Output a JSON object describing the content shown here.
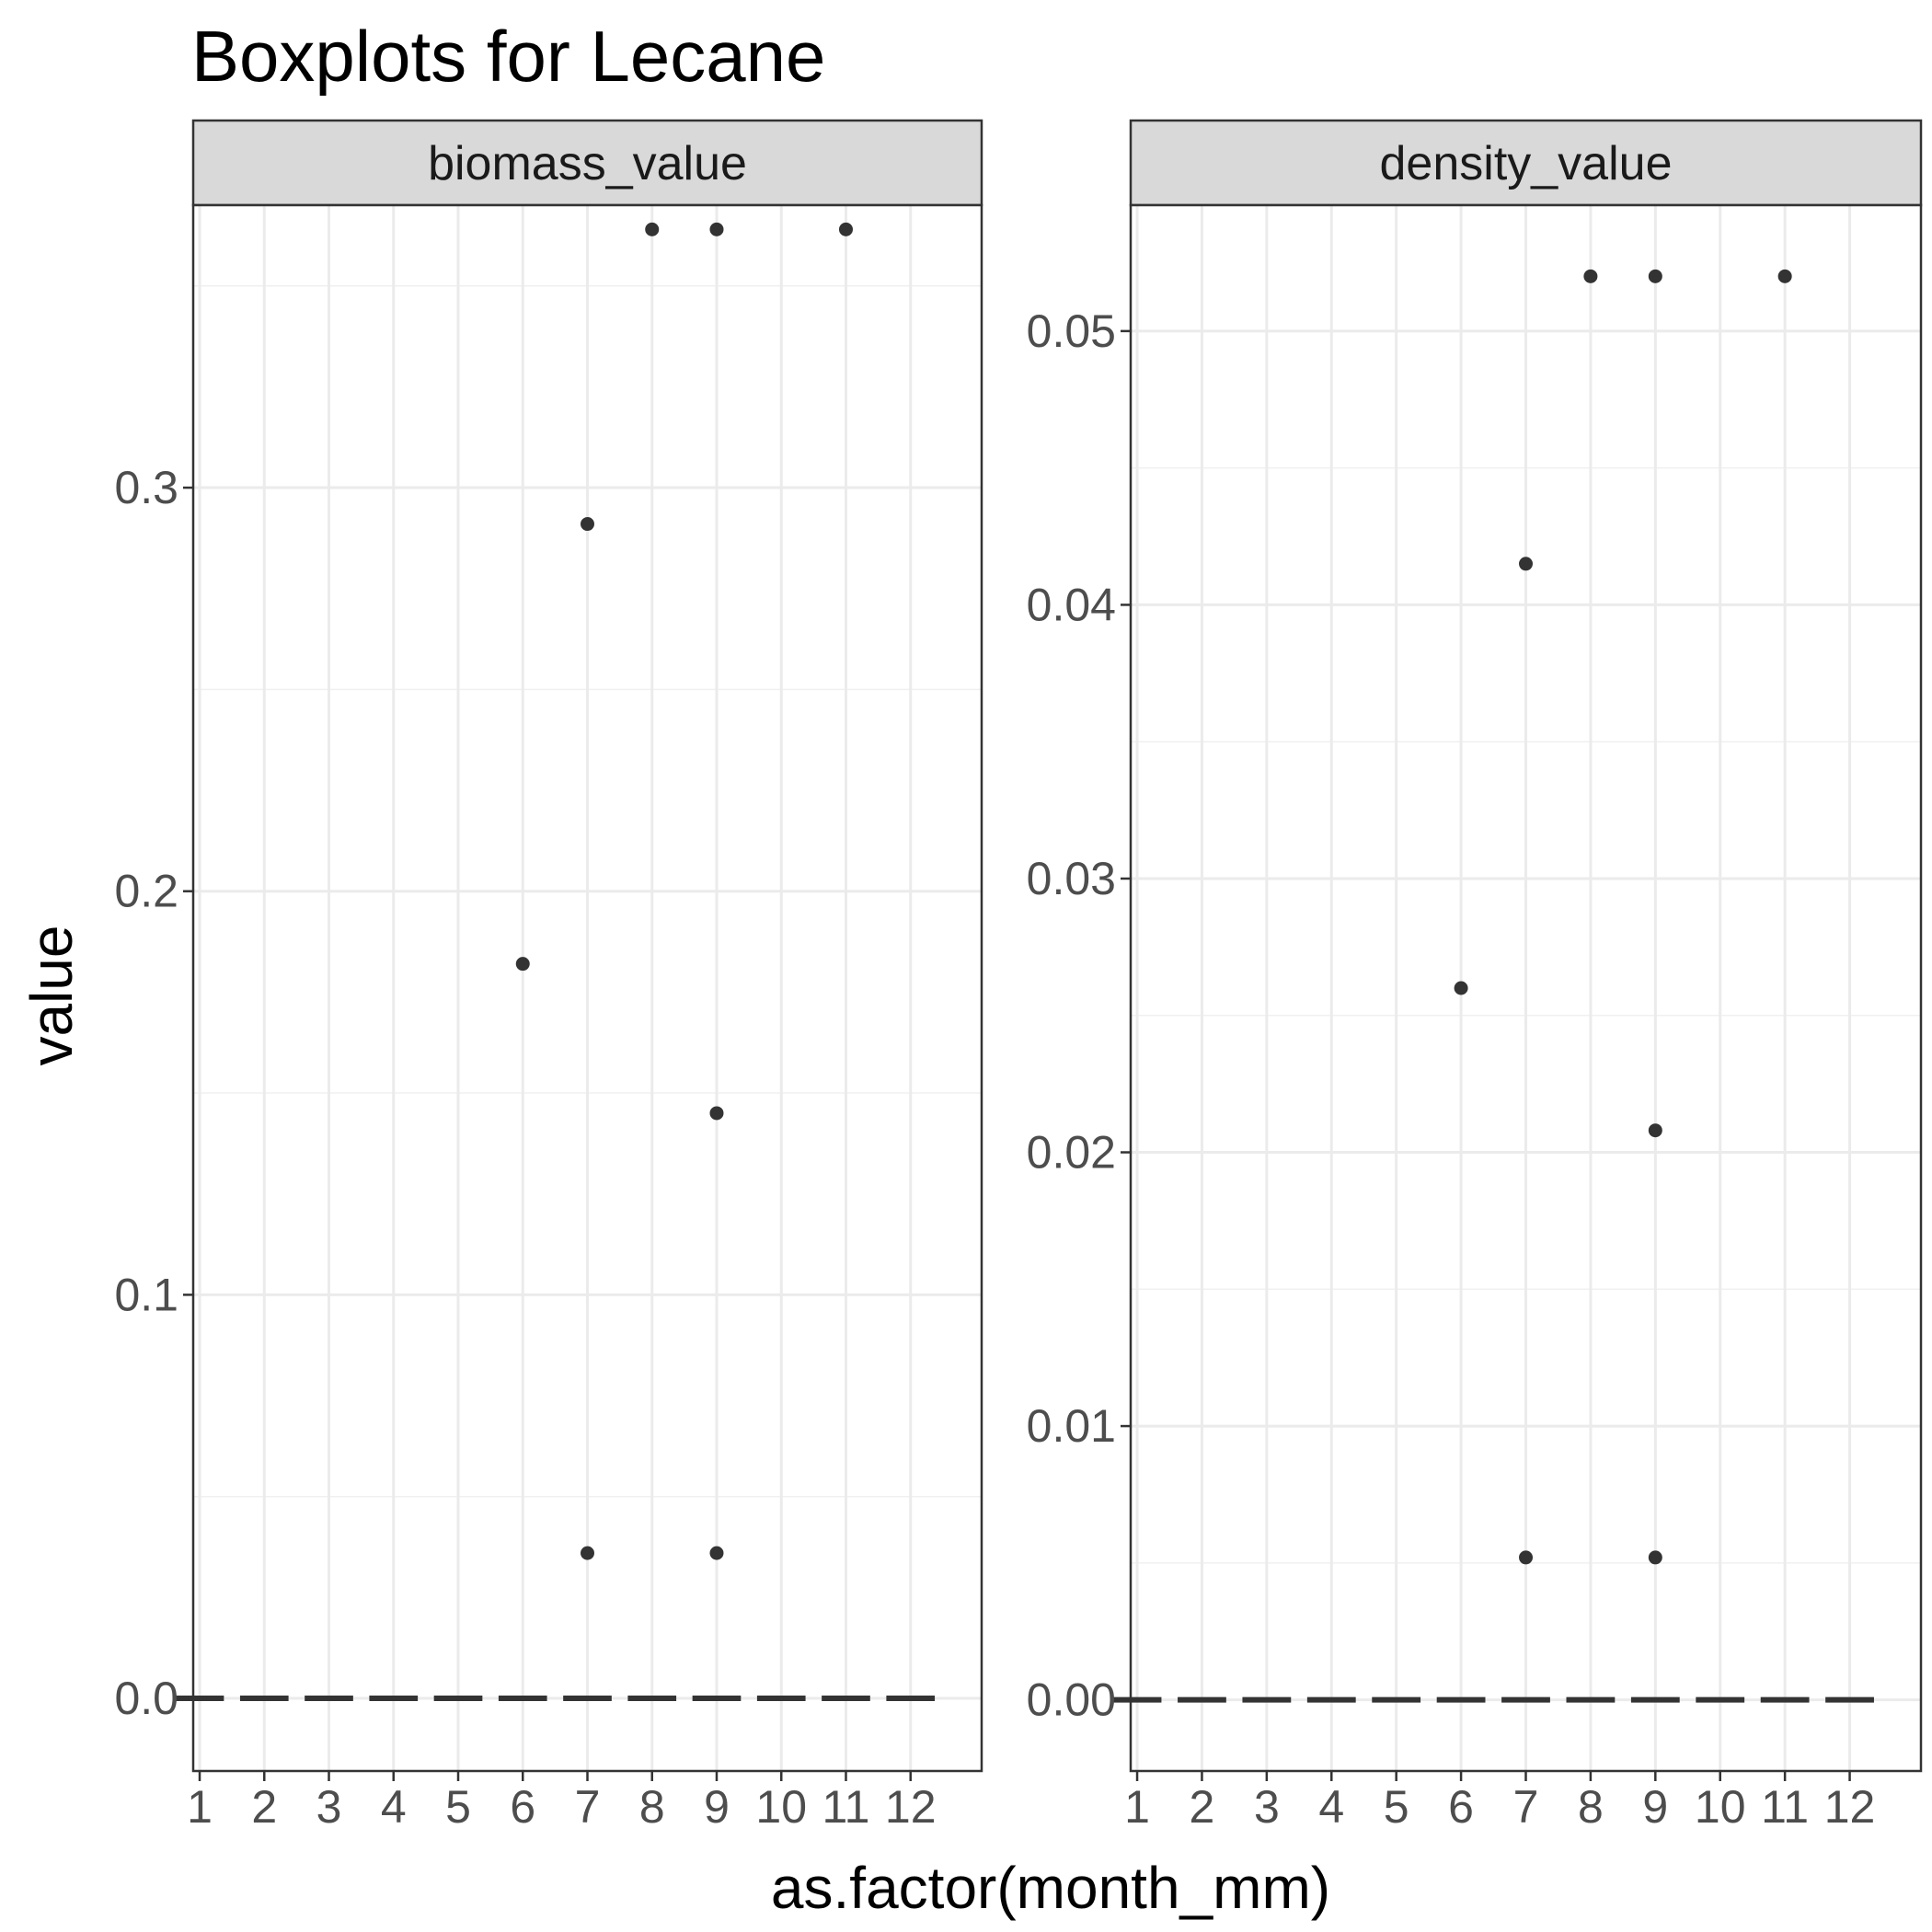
{
  "chart_data": {
    "type": "boxplot",
    "title": "Boxplots for Lecane",
    "xlabel": "as.factor(month_mm)",
    "ylabel": "value",
    "categories": [
      "1",
      "2",
      "3",
      "4",
      "5",
      "6",
      "7",
      "8",
      "9",
      "10",
      "11",
      "12"
    ],
    "grid": true,
    "panels": [
      {
        "strip": "biomass_value",
        "ylim": [
          -0.018,
          0.37
        ],
        "yticks": [
          0.0,
          0.1,
          0.2,
          0.3
        ],
        "ytick_labels": [
          "0.0",
          "0.1",
          "0.2",
          "0.3"
        ],
        "median": 0,
        "outliers": [
          {
            "x": "6",
            "y": 0.182
          },
          {
            "x": "7",
            "y": 0.291
          },
          {
            "x": "7",
            "y": 0.036
          },
          {
            "x": "8",
            "y": 0.364
          },
          {
            "x": "9",
            "y": 0.364
          },
          {
            "x": "9",
            "y": 0.145
          },
          {
            "x": "9",
            "y": 0.036
          },
          {
            "x": "11",
            "y": 0.364
          }
        ]
      },
      {
        "strip": "density_value",
        "ylim": [
          -0.0026,
          0.0546
        ],
        "yticks": [
          0.0,
          0.01,
          0.02,
          0.03,
          0.04,
          0.05
        ],
        "ytick_labels": [
          "0.00",
          "0.01",
          "0.02",
          "0.03",
          "0.04",
          "0.05"
        ],
        "median": 0,
        "outliers": [
          {
            "x": "6",
            "y": 0.026
          },
          {
            "x": "7",
            "y": 0.0415
          },
          {
            "x": "7",
            "y": 0.0052
          },
          {
            "x": "8",
            "y": 0.052
          },
          {
            "x": "9",
            "y": 0.052
          },
          {
            "x": "9",
            "y": 0.0208
          },
          {
            "x": "9",
            "y": 0.0052
          },
          {
            "x": "11",
            "y": 0.052
          }
        ]
      }
    ]
  }
}
